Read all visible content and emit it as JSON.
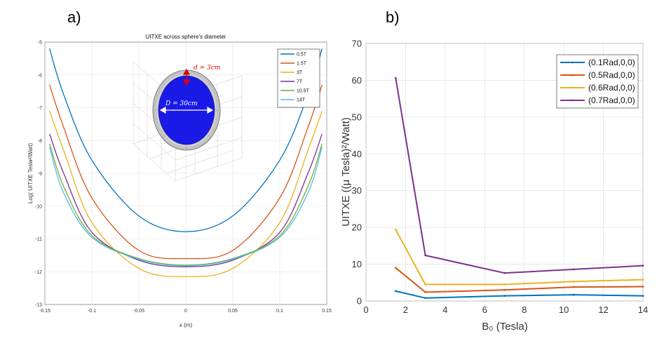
{
  "labels": {
    "a": "a)",
    "b": "b)"
  },
  "colors": [
    "#0072BD",
    "#D95319",
    "#EDB120",
    "#7E2F8E",
    "#77AC30",
    "#4DBEEE"
  ],
  "inset": {
    "d_label": "d = 3cm",
    "D_label": "D = 30cm",
    "d_color": "#e00000",
    "sphere_color": "#1a1ae6"
  },
  "chart_data": [
    {
      "type": "line",
      "title": "UITXE across sphere's diameter",
      "xlabel": "x (m)",
      "ylabel": "Log( UITXE   Tesla²/Watt)",
      "xlim": [
        -0.15,
        0.15
      ],
      "ylim": [
        -13,
        -5
      ],
      "xticks": [
        "-0.15",
        "-0.1",
        "-0.05",
        "0",
        "0.05",
        "0.1",
        "0.15"
      ],
      "yticks": [
        "-13",
        "-12",
        "-11",
        "-10",
        "-9",
        "-8",
        "-7",
        "-6",
        "-5"
      ],
      "legend_position": "top-right",
      "grid": true,
      "series": [
        {
          "name": "0.5T",
          "center": -10.78,
          "p": [
            [
              0.145,
              -5.2
            ],
            [
              0.13,
              -6.6
            ],
            [
              0.1,
              -8.6
            ],
            [
              0.05,
              -10.3
            ]
          ]
        },
        {
          "name": "1.5T",
          "center": -11.6,
          "p": [
            [
              0.145,
              -6.3
            ],
            [
              0.13,
              -7.6
            ],
            [
              0.1,
              -9.75
            ],
            [
              0.05,
              -11.35
            ]
          ]
        },
        {
          "name": "3T",
          "center": -12.15,
          "p": [
            [
              0.145,
              -7.1
            ],
            [
              0.13,
              -8.3
            ],
            [
              0.1,
              -10.5
            ],
            [
              0.05,
              -11.9
            ]
          ]
        },
        {
          "name": "7T",
          "center": -11.85,
          "p": [
            [
              0.145,
              -7.8
            ],
            [
              0.13,
              -9.0
            ],
            [
              0.1,
              -10.8
            ],
            [
              0.05,
              -11.65
            ]
          ]
        },
        {
          "name": "10.5T",
          "center": -11.8,
          "p": [
            [
              0.145,
              -8.1
            ],
            [
              0.13,
              -9.4
            ],
            [
              0.1,
              -10.9
            ],
            [
              0.05,
              -11.6
            ]
          ]
        },
        {
          "name": "14T",
          "center": -11.82,
          "p": [
            [
              0.145,
              -8.2
            ],
            [
              0.13,
              -9.6
            ],
            [
              0.1,
              -10.95
            ],
            [
              0.05,
              -11.62
            ]
          ]
        }
      ]
    },
    {
      "type": "line",
      "xlabel": "B₀ (Tesla)",
      "ylabel": "UITXE ((μ Tesla)²/Watt)",
      "xlim": [
        0,
        14
      ],
      "ylim": [
        0,
        70
      ],
      "xticks": [
        "0",
        "2",
        "4",
        "6",
        "8",
        "10",
        "12",
        "14"
      ],
      "yticks": [
        "0",
        "10",
        "20",
        "30",
        "40",
        "50",
        "60",
        "70"
      ],
      "legend_position": "top-right",
      "grid": true,
      "series": [
        {
          "name": "(0.1Rad,0,0)",
          "x": [
            1.5,
            3,
            7,
            10.5,
            14
          ],
          "y": [
            2.7,
            0.8,
            1.4,
            1.7,
            1.4
          ]
        },
        {
          "name": "(0.5Rad,0,0)",
          "x": [
            1.5,
            3,
            7,
            10.5,
            14
          ],
          "y": [
            9.0,
            2.4,
            3.0,
            3.8,
            3.9
          ]
        },
        {
          "name": "(0.6Rad,0,0)",
          "x": [
            1.5,
            3,
            7,
            10.5,
            14
          ],
          "y": [
            19.4,
            4.5,
            4.5,
            5.3,
            5.8
          ]
        },
        {
          "name": "(0.7Rad,0,0)",
          "x": [
            1.5,
            3,
            7,
            10.5,
            14
          ],
          "y": [
            60.6,
            12.4,
            7.6,
            8.6,
            9.6
          ]
        }
      ]
    }
  ]
}
